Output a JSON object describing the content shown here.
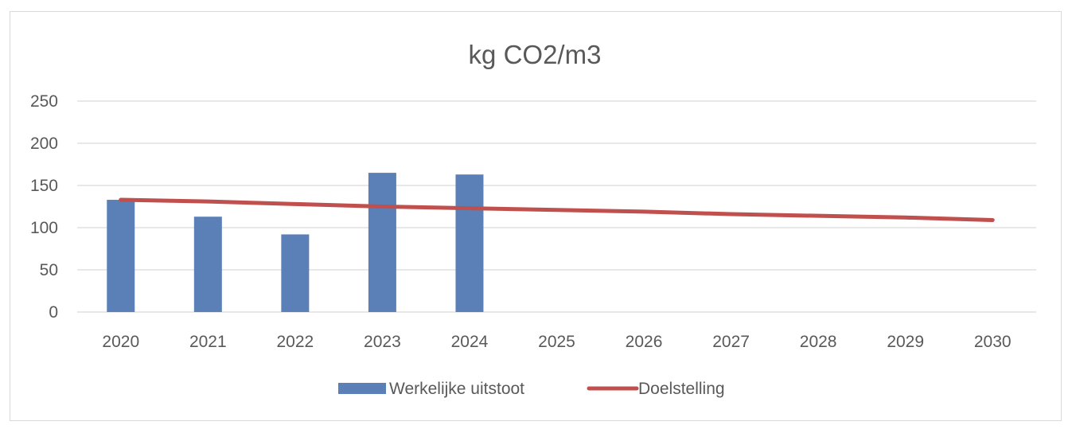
{
  "chart_data": {
    "type": "bar",
    "title": "kg CO2/m3",
    "categories": [
      "2020",
      "2021",
      "2022",
      "2023",
      "2024",
      "2025",
      "2026",
      "2027",
      "2028",
      "2029",
      "2030"
    ],
    "ylim": [
      0,
      250
    ],
    "yticks": [
      0,
      50,
      100,
      150,
      200,
      250
    ],
    "grid": true,
    "legend_position": "bottom",
    "series": [
      {
        "name": "Werkelijke uitstoot",
        "type": "bar",
        "color": "#5b80b8",
        "values": [
          133,
          113,
          92,
          165,
          163,
          null,
          null,
          null,
          null,
          null,
          null
        ]
      },
      {
        "name": "Doelstelling",
        "type": "line",
        "color": "#c0504d",
        "values": [
          133,
          131,
          128,
          125,
          123,
          121,
          119,
          116,
          114,
          112,
          109
        ]
      }
    ]
  }
}
